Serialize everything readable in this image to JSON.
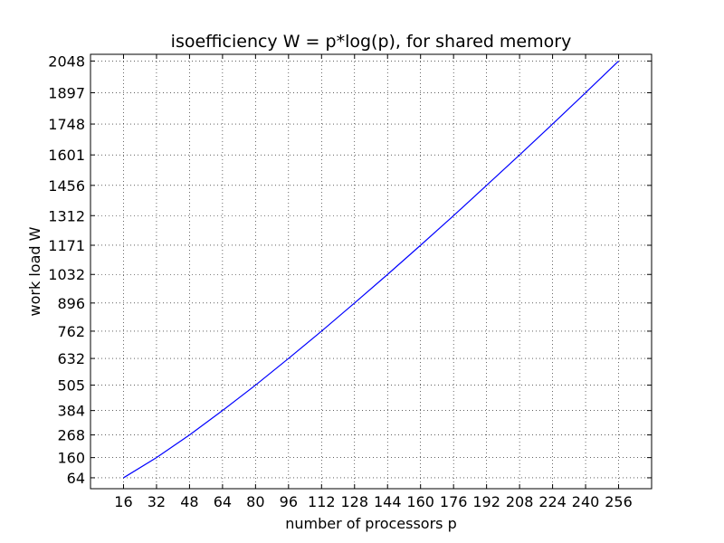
{
  "chart_data": {
    "type": "line",
    "title": "isoefficiency W = p*log(p), for shared memory",
    "xlabel": "number of processors p",
    "ylabel": "work load W",
    "xlim": [
      0,
      272
    ],
    "ylim": [
      12,
      2080
    ],
    "xticks": [
      16,
      32,
      48,
      64,
      80,
      96,
      112,
      128,
      144,
      160,
      176,
      192,
      208,
      224,
      240,
      256
    ],
    "yticks": [
      64,
      160,
      268,
      384,
      505,
      632,
      762,
      896,
      1032,
      1171,
      1312,
      1456,
      1601,
      1748,
      1897,
      2048
    ],
    "grid": true,
    "series": [
      {
        "color": "#0000ff",
        "x": [
          16,
          32,
          48,
          64,
          80,
          96,
          112,
          128,
          144,
          160,
          176,
          192,
          208,
          224,
          240,
          256
        ],
        "y": [
          64,
          160,
          268,
          384,
          505,
          632,
          762,
          896,
          1032,
          1171,
          1312,
          1456,
          1601,
          1748,
          1897,
          2048
        ]
      }
    ]
  }
}
